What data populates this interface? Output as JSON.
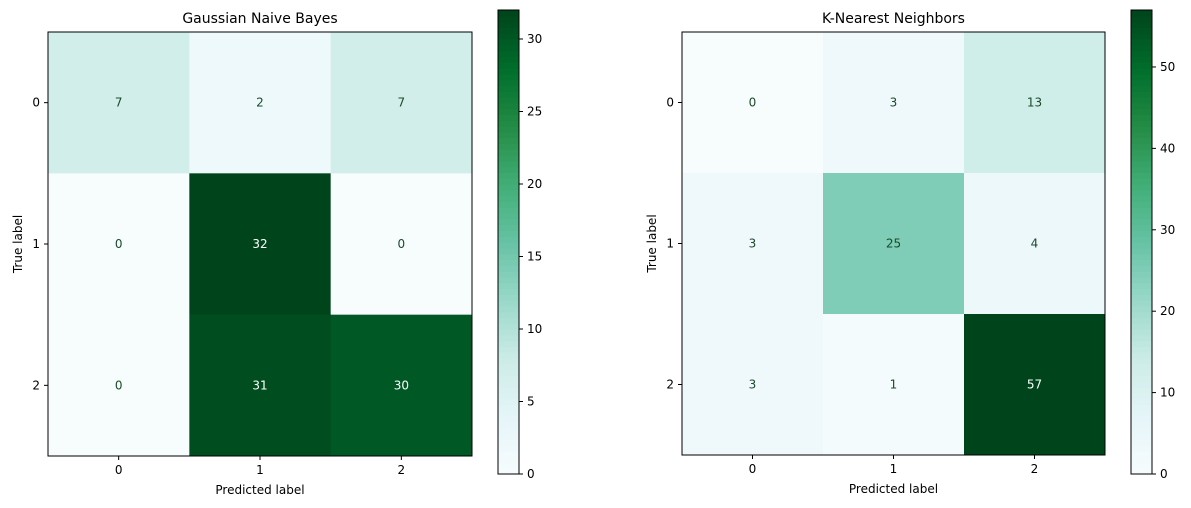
{
  "chart_data": [
    {
      "type": "heatmap",
      "title": "Gaussian Naive Bayes",
      "xlabel": "Predicted label",
      "ylabel": "True label",
      "x_categories": [
        "0",
        "1",
        "2"
      ],
      "y_categories": [
        "0",
        "1",
        "2"
      ],
      "values": [
        [
          7,
          2,
          7
        ],
        [
          0,
          32,
          0
        ],
        [
          0,
          31,
          30
        ]
      ],
      "colormap": "BuGn",
      "colorbar": {
        "min": 0,
        "max": 32,
        "ticks": [
          "0",
          "5",
          "10",
          "15",
          "20",
          "25",
          "30"
        ]
      }
    },
    {
      "type": "heatmap",
      "title": "K-Nearest Neighbors",
      "xlabel": "Predicted label",
      "ylabel": "True label",
      "x_categories": [
        "0",
        "1",
        "2"
      ],
      "y_categories": [
        "0",
        "1",
        "2"
      ],
      "values": [
        [
          0,
          3,
          13
        ],
        [
          3,
          25,
          4
        ],
        [
          3,
          1,
          57
        ]
      ],
      "colormap": "BuGn",
      "colorbar": {
        "min": 0,
        "max": 57,
        "ticks": [
          "0",
          "10",
          "20",
          "30",
          "40",
          "50"
        ]
      }
    }
  ]
}
